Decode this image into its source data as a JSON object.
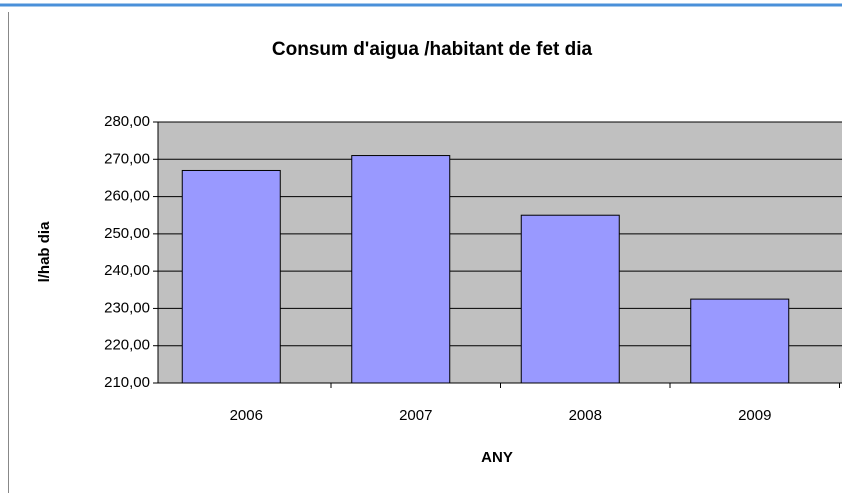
{
  "chart_data": {
    "type": "bar",
    "title": "Consum d'aigua /habitant de fet dia",
    "x_label": "ANY",
    "y_label": "l/hab dia",
    "categories": [
      "2006",
      "2007",
      "2008",
      "2009"
    ],
    "values": [
      267,
      271,
      255,
      232.5
    ],
    "color": "#9999ff",
    "ylim": [
      210,
      280
    ],
    "yticks": [
      {
        "value": 210,
        "label": "210,00"
      },
      {
        "value": 220,
        "label": "220,00"
      },
      {
        "value": 230,
        "label": "230,00"
      },
      {
        "value": 240,
        "label": "240,00"
      },
      {
        "value": 250,
        "label": "250,00"
      },
      {
        "value": 260,
        "label": "260,00"
      },
      {
        "value": 270,
        "label": "270,00"
      },
      {
        "value": 280,
        "label": "280,00"
      }
    ],
    "grid": true
  }
}
